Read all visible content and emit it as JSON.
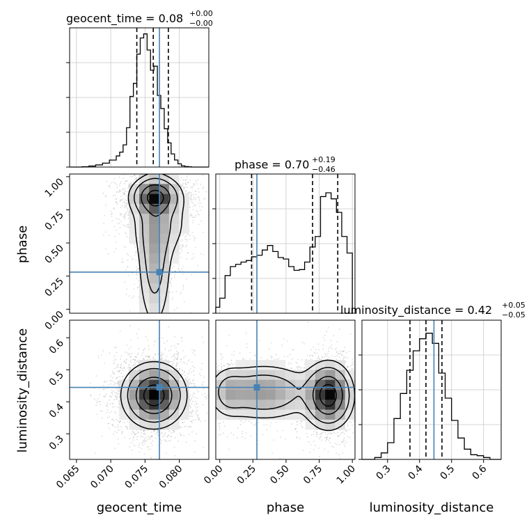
{
  "chart_data": {
    "type": "corner",
    "truth_color": "#4682b4",
    "contour_color": "#000000",
    "grid": true,
    "parameters": [
      {
        "name": "geocent_time",
        "truth": 0.0771,
        "title": {
          "main": "geocent_time = 0.08",
          "plus": "+0.00",
          "minus": "−0.00"
        },
        "xlim": [
          0.064,
          0.0843
        ],
        "ticks": [
          0.065,
          0.07,
          0.075,
          0.08
        ],
        "tick_labels": [
          "0.065",
          "0.070",
          "0.075",
          "0.080"
        ],
        "quantiles": [
          0.0738,
          0.0762,
          0.0784
        ]
      },
      {
        "name": "phase",
        "truth": 0.28,
        "title": {
          "main": "phase = 0.70",
          "plus": "+0.19",
          "minus": "−0.46"
        },
        "xlim": [
          -0.03,
          1.02
        ],
        "ticks": [
          0.0,
          0.25,
          0.5,
          0.75,
          1.0
        ],
        "tick_labels": [
          "0.00",
          "0.25",
          "0.50",
          "0.75",
          "1.00"
        ],
        "quantiles": [
          0.24,
          0.7,
          0.89
        ]
      },
      {
        "name": "luminosity_distance",
        "truth": 0.445,
        "title": {
          "main": "luminosity_distance = 0.42",
          "plus": "+0.05",
          "minus": "−0.05"
        },
        "xlim": [
          0.22,
          0.655
        ],
        "ticks": [
          0.3,
          0.4,
          0.5,
          0.6
        ],
        "tick_labels": [
          "0.3",
          "0.4",
          "0.5",
          "0.6"
        ],
        "quantiles": [
          0.37,
          0.42,
          0.47
        ]
      }
    ],
    "histograms": [
      {
        "param": "geocent_time",
        "edges": [
          0.064,
          0.0658,
          0.0668,
          0.0678,
          0.0688,
          0.0698,
          0.0708,
          0.0713,
          0.0718,
          0.0723,
          0.0728,
          0.0733,
          0.0738,
          0.0743,
          0.0748,
          0.0753,
          0.0758,
          0.0763,
          0.0768,
          0.0773,
          0.0778,
          0.0783,
          0.0788,
          0.0793,
          0.0798,
          0.0803,
          0.0808,
          0.0813,
          0.0818,
          0.0843
        ],
        "counts": [
          0.0,
          0.3,
          1.0,
          2.1,
          3.9,
          6.9,
          11.0,
          14.8,
          22.0,
          39.0,
          70.0,
          83.0,
          112.0,
          128.0,
          132.0,
          116.0,
          96.0,
          100.0,
          71.0,
          58.0,
          38.0,
          24.0,
          13.0,
          7.0,
          3.2,
          1.2,
          0.5,
          0.2,
          0.0
        ],
        "ymax": 138
      },
      {
        "param": "phase",
        "edges": [
          -0.03,
          0.0,
          0.04,
          0.08,
          0.12,
          0.16,
          0.2,
          0.24,
          0.28,
          0.32,
          0.36,
          0.4,
          0.44,
          0.48,
          0.52,
          0.56,
          0.6,
          0.64,
          0.68,
          0.72,
          0.76,
          0.8,
          0.84,
          0.88,
          0.92,
          0.96,
          1.0
        ],
        "counts": [
          8,
          20,
          50,
          62,
          65,
          68,
          70,
          75,
          77,
          84,
          90,
          82,
          74,
          72,
          62,
          57,
          58,
          68,
          88,
          102,
          155,
          160,
          152,
          134,
          102,
          80
        ],
        "ymax": 185
      },
      {
        "param": "luminosity_distance",
        "edges": [
          0.22,
          0.26,
          0.28,
          0.3,
          0.32,
          0.34,
          0.36,
          0.38,
          0.4,
          0.42,
          0.44,
          0.46,
          0.48,
          0.5,
          0.52,
          0.54,
          0.56,
          0.58,
          0.6,
          0.62,
          0.655
        ],
        "counts": [
          0,
          2,
          7,
          18,
          44,
          71,
          96,
          117,
          130,
          136,
          125,
          93,
          66,
          42,
          23,
          11,
          5,
          4,
          2,
          0
        ],
        "ymax": 150
      }
    ],
    "blobs": [
      {
        "pair": [
          "geocent_time",
          "phase"
        ],
        "components": [
          {
            "x": 0.0765,
            "y": 0.85,
            "sx": 0.0018,
            "sy": 0.075,
            "w": 1.0
          },
          {
            "x": 0.0764,
            "y": 0.4,
            "sx": 0.0013,
            "sy": 0.3,
            "w": 0.42
          },
          {
            "x": 0.0772,
            "y": 0.65,
            "sx": 0.0024,
            "sy": 0.15,
            "w": 0.25
          }
        ],
        "levels": [
          0.8,
          0.5,
          0.22,
          0.09
        ],
        "point": [
          0.0771,
          0.28
        ]
      },
      {
        "pair": [
          "geocent_time",
          "luminosity_distance"
        ],
        "components": [
          {
            "x": 0.0763,
            "y": 0.42,
            "sx": 0.0022,
            "sy": 0.048,
            "w": 1.0
          }
        ],
        "levels": [
          0.8,
          0.5,
          0.22,
          0.09
        ],
        "point": [
          0.0771,
          0.445
        ]
      },
      {
        "pair": [
          "phase",
          "luminosity_distance"
        ],
        "components": [
          {
            "x": 0.82,
            "y": 0.42,
            "sx": 0.09,
            "sy": 0.05,
            "w": 1.0
          },
          {
            "x": 0.33,
            "y": 0.43,
            "sx": 0.2,
            "sy": 0.045,
            "w": 0.45
          },
          {
            "x": 0.07,
            "y": 0.43,
            "sx": 0.07,
            "sy": 0.04,
            "w": 0.22
          }
        ],
        "levels": [
          0.8,
          0.5,
          0.22,
          0.09
        ],
        "point": [
          0.28,
          0.445
        ]
      }
    ]
  }
}
